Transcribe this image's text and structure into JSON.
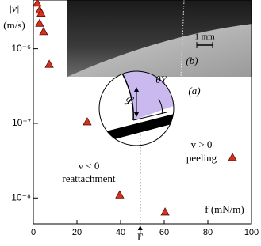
{
  "chart_data": {
    "type": "scatter",
    "y_label_top": "|v|",
    "y_label_unit": "(m/s)",
    "x_label": "f (mN/m)",
    "x": [
      1.8,
      2.9,
      3.6,
      2.9,
      4.7,
      7.3,
      24.7,
      39.6,
      60.4,
      91.3
    ],
    "series": [
      {
        "color": "#d7301f",
        "values": [
          4.1e-06,
          3.3e-06,
          3e-06,
          2.2e-06,
          1.7e-06,
          6.2e-07,
          1.05e-07,
          1.1e-08,
          6.5e-09,
          3.5e-08
        ]
      }
    ],
    "xlim": [
      0,
      100
    ],
    "xticks": [
      0,
      20,
      40,
      60,
      80,
      100
    ],
    "ylim": [
      4.5e-09,
      4.5e-06
    ],
    "yticks": [
      {
        "value": 1e-08,
        "label": "10⁻⁸"
      },
      {
        "value": 1e-07,
        "label": "10⁻⁷"
      },
      {
        "value": 1e-06,
        "label": "10⁻⁶"
      }
    ],
    "log_y": true,
    "threshold": {
      "x": 49,
      "label": "Γ"
    },
    "annotations": {
      "left_sign": "v < 0",
      "left_text": "reattachment",
      "right_sign": "v > 0",
      "right_text": "peeling",
      "inset_a": "(a)",
      "inset_b": "(b)",
      "scale_bar": "1 mm",
      "length_symbol": "𝓛",
      "angle_symbol": "θY"
    }
  }
}
